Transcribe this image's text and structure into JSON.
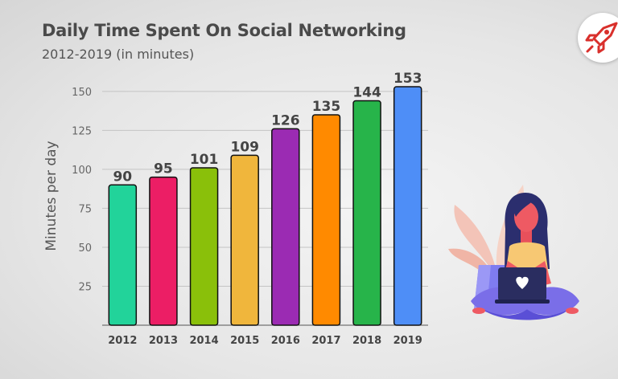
{
  "header": {
    "title": "Daily Time Spent On Social Networking",
    "subtitle": "2012-2019 (in minutes)"
  },
  "logo": {
    "icon": "rocket-icon",
    "color": "#d9302c"
  },
  "illustration": {
    "icon": "woman-with-laptop-illustration"
  },
  "chart_data": {
    "type": "bar",
    "title": "Daily Time Spent On Social Networking",
    "subtitle": "2012-2019 (in minutes)",
    "ylabel": "Minutes per day",
    "xlabel": "",
    "ylim": [
      0,
      153
    ],
    "yticks": [
      25,
      50,
      75,
      100,
      125,
      150
    ],
    "grid": true,
    "categories": [
      "2012",
      "2013",
      "2014",
      "2015",
      "2016",
      "2017",
      "2018",
      "2019"
    ],
    "values": [
      90,
      95,
      101,
      109,
      126,
      135,
      144,
      153
    ],
    "colors": [
      "#22d39a",
      "#ec1e65",
      "#8ac00a",
      "#f0b63c",
      "#9b2bb3",
      "#ff8a00",
      "#27b44a",
      "#4e8ef7"
    ]
  }
}
